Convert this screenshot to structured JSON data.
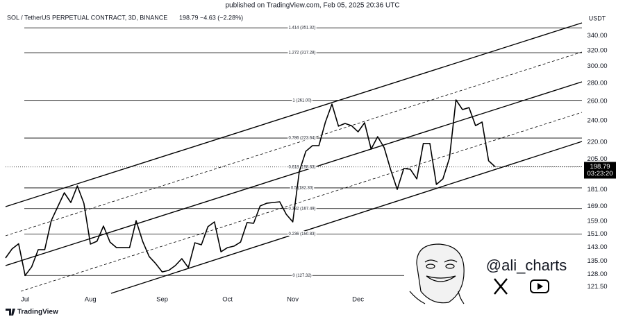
{
  "header": {
    "published": "published on TradingView.com, Feb 05, 2025 20:36 UTC",
    "brand": "TradingView"
  },
  "watermark": {
    "handle": "@ali_charts"
  },
  "chart_data": {
    "type": "line",
    "title": "SOL / TetherUS PERPETUAL CONTRACT, 3D, BINANCE",
    "subtitle": "198.79 −4.63 (−2.28%)",
    "y_label": "USDT",
    "log_scale": true,
    "color": "#000000",
    "categories": [
      null,
      null,
      null,
      "Jul",
      null,
      null,
      null,
      null,
      null,
      null,
      null,
      null,
      null,
      "Aug",
      null,
      null,
      null,
      null,
      null,
      null,
      null,
      null,
      null,
      null,
      "Sep",
      null,
      null,
      null,
      null,
      null,
      null,
      null,
      null,
      null,
      "Oct",
      null,
      null,
      null,
      null,
      null,
      null,
      null,
      null,
      null,
      "Nov",
      null,
      null,
      null,
      null,
      null,
      null,
      null,
      null,
      null,
      "Dec",
      null,
      null,
      null,
      null,
      null,
      null,
      null,
      null,
      null,
      null,
      null,
      null,
      null,
      null,
      null,
      null,
      null,
      null,
      null,
      null,
      null
    ],
    "values": [
      136.8,
      142,
      145,
      127.3,
      131.9,
      141.5,
      141.5,
      159.4,
      168.8,
      178.7,
      171.7,
      183.8,
      171.2,
      144.8,
      146.5,
      155.9,
      146,
      142.7,
      142.7,
      142.7,
      159.4,
      146.5,
      137.6,
      133.7,
      129.2,
      130.0,
      132.6,
      136.4,
      131.5,
      145.6,
      144.4,
      155.5,
      158.6,
      140.3,
      142.7,
      143.6,
      146.0,
      158.2,
      157.7,
      169.3,
      171.2,
      171.7,
      172.2,
      163.6,
      158.6,
      195,
      211.8,
      216.7,
      216.7,
      238.8,
      257.0,
      234.8,
      237.4,
      235.3,
      229.4,
      238.1,
      213.7,
      224.9,
      215.0,
      196.3,
      181.2,
      197.3,
      196.8,
      189.2,
      218.7,
      218.7,
      184.9,
      189.2,
      206.0,
      261.5,
      251.3,
      253.3,
      235.3,
      238.8,
      203.7,
      198.79
    ],
    "ylim": [
      113.4,
      372
    ],
    "yticks": [
      {
        "value": 340,
        "label": "340.00"
      },
      {
        "value": 320,
        "label": "320.00"
      },
      {
        "value": 300,
        "label": "300.00"
      },
      {
        "value": 280,
        "label": "280.00"
      },
      {
        "value": 260,
        "label": "260.00"
      },
      {
        "value": 240,
        "label": "240.00"
      },
      {
        "value": 220,
        "label": "220.00"
      },
      {
        "value": 205,
        "label": "205.00"
      },
      {
        "value": 181,
        "label": "181.00"
      },
      {
        "value": 169,
        "label": "169.00"
      },
      {
        "value": 159,
        "label": "159.00"
      },
      {
        "value": 151,
        "label": "151.00"
      },
      {
        "value": 143,
        "label": "143.00"
      },
      {
        "value": 135,
        "label": "135.00"
      },
      {
        "value": 128,
        "label": "128.00"
      },
      {
        "value": 121.5,
        "label": "121.50"
      }
    ],
    "last_price": 198.79,
    "countdown": "03:23:20",
    "fib_levels": [
      {
        "value": 351.32,
        "label": "1.414 (351.32)"
      },
      {
        "value": 317.28,
        "label": "1.272 (317.28)"
      },
      {
        "value": 261.0,
        "label": "1 (261.00)"
      },
      {
        "value": 223.64,
        "label": "0.786 (223.64)"
      },
      {
        "value": 198.63,
        "label": "0.618 (198.63)"
      },
      {
        "value": 182.3,
        "label": "0.5 (182.30)"
      },
      {
        "value": 167.49,
        "label": "0.382 (167.49)"
      },
      {
        "value": 150.83,
        "label": "0.236 (150.83)"
      },
      {
        "value": 127.32,
        "label": "0 (127.32)"
      }
    ]
  }
}
